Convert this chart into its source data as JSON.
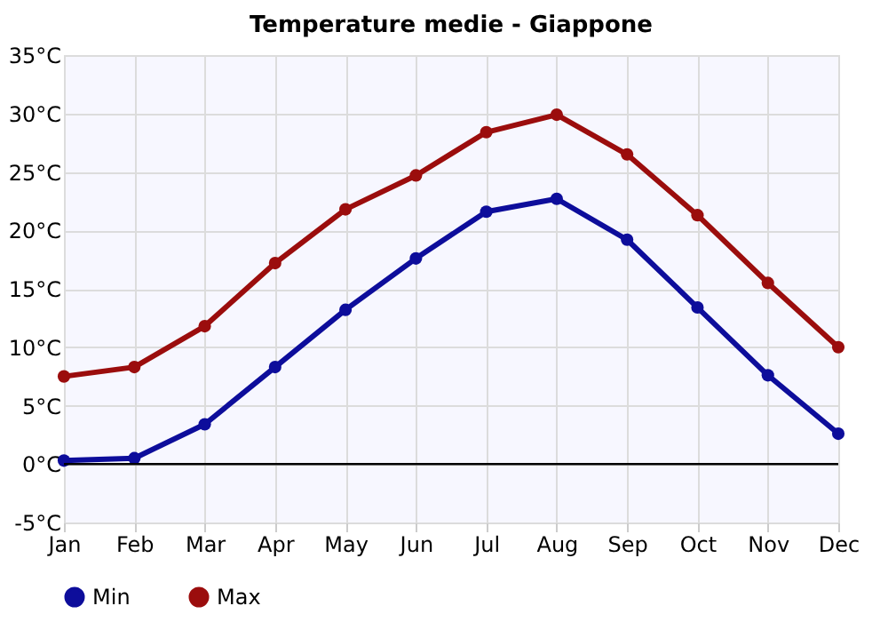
{
  "chart_data": {
    "type": "line",
    "title": "Temperature medie - Giappone",
    "categories": [
      "Jan",
      "Feb",
      "Mar",
      "Apr",
      "May",
      "Jun",
      "Jul",
      "Aug",
      "Sep",
      "Oct",
      "Nov",
      "Dec"
    ],
    "series": [
      {
        "name": "Min",
        "color": "#0d0d9b",
        "values": [
          0.3,
          0.5,
          3.4,
          8.3,
          13.2,
          17.6,
          21.6,
          22.7,
          19.2,
          13.4,
          7.6,
          2.6
        ]
      },
      {
        "name": "Max",
        "color": "#9b0d0d",
        "values": [
          7.5,
          8.3,
          11.8,
          17.2,
          21.8,
          24.7,
          28.4,
          29.9,
          26.5,
          21.3,
          15.5,
          10.0
        ]
      }
    ],
    "ylim": [
      -5,
      35
    ],
    "yticks": [
      {
        "value": -5,
        "label": "-5°C"
      },
      {
        "value": 0,
        "label": "0°C"
      },
      {
        "value": 5,
        "label": "5°C"
      },
      {
        "value": 10,
        "label": "10°C"
      },
      {
        "value": 15,
        "label": "15°C"
      },
      {
        "value": 20,
        "label": "20°C"
      },
      {
        "value": 25,
        "label": "25°C"
      },
      {
        "value": 30,
        "label": "30°C"
      },
      {
        "value": 35,
        "label": "35°C"
      }
    ],
    "ref_lines": [
      {
        "axis": "y",
        "value": 0,
        "color": "#000000"
      }
    ],
    "grid": true,
    "legend": "bottom left",
    "marker": "circle",
    "line_style": "solid"
  }
}
